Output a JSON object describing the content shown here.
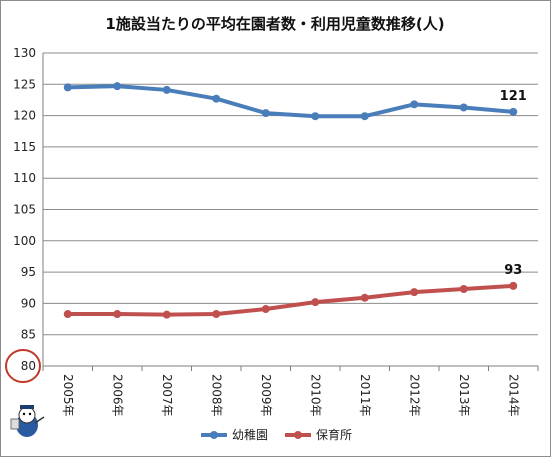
{
  "chart_data": {
    "type": "line",
    "title": "1施設当たりの平均在園者数・利用児童数推移(人)",
    "categories": [
      "2005年",
      "2006年",
      "2007年",
      "2008年",
      "2009年",
      "2010年",
      "2011年",
      "2012年",
      "2013年",
      "2014年"
    ],
    "series": [
      {
        "name": "幼稚園",
        "color": "#4a7ebb",
        "values": [
          124.5,
          124.7,
          124.1,
          122.7,
          120.4,
          119.9,
          119.9,
          121.8,
          121.3,
          120.6
        ]
      },
      {
        "name": "保育所",
        "color": "#c0504d",
        "values": [
          88.3,
          88.3,
          88.2,
          88.3,
          89.1,
          90.2,
          90.9,
          91.8,
          92.3,
          92.8
        ]
      }
    ],
    "data_labels": [
      {
        "series": 0,
        "index": 9,
        "text": "121"
      },
      {
        "series": 1,
        "index": 9,
        "text": "93"
      }
    ],
    "y_ticks": [
      "80",
      "85",
      "90",
      "95",
      "100",
      "105",
      "110",
      "115",
      "120",
      "125",
      "130"
    ],
    "ylim": [
      80,
      130
    ],
    "grid": true,
    "legend": "bottom",
    "highlight_color": "#c0392b"
  }
}
